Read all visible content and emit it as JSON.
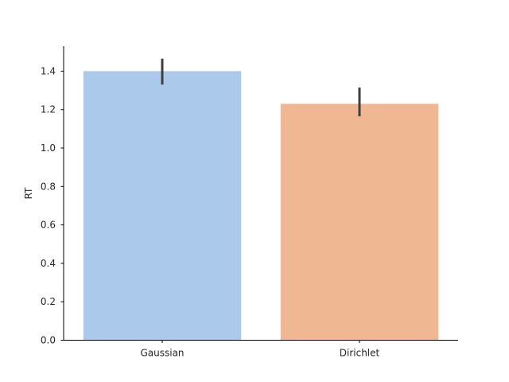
{
  "chart_data": {
    "type": "bar",
    "categories": [
      "Gaussian",
      "Dirichlet"
    ],
    "values": [
      1.4,
      1.23
    ],
    "error_low": [
      1.33,
      1.165
    ],
    "error_high": [
      1.465,
      1.315
    ],
    "colors": [
      "#abc9ea",
      "#efb792"
    ],
    "error_color": "#3f3f3f",
    "title": "",
    "xlabel": "",
    "ylabel": "RT",
    "ylim": [
      0,
      1.53
    ],
    "yticks": [
      0.0,
      0.2,
      0.4,
      0.6,
      0.8,
      1.0,
      1.2,
      1.4
    ],
    "ytick_labels": [
      "0.0",
      "0.2",
      "0.4",
      "0.6",
      "0.8",
      "1.0",
      "1.2",
      "1.4"
    ],
    "grid": false,
    "spines": [
      "left",
      "bottom"
    ]
  }
}
